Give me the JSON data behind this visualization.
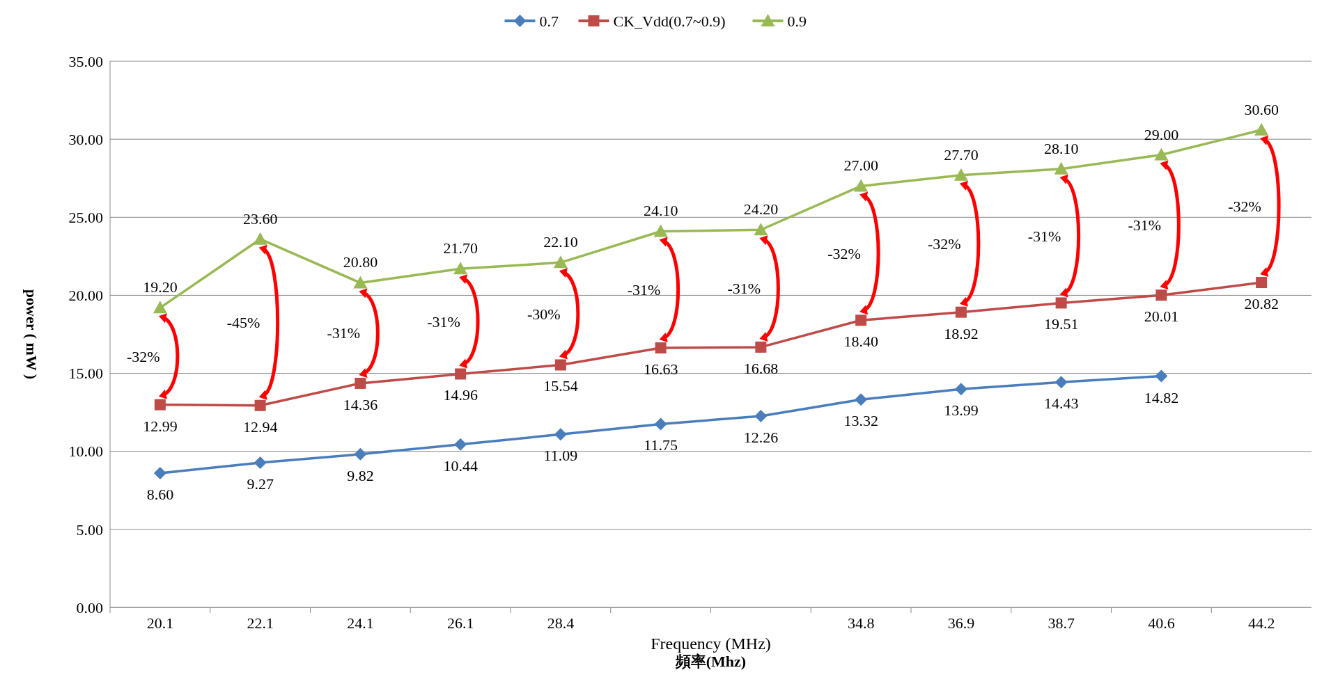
{
  "chart_data": {
    "type": "line",
    "xlabel": "頻率(Mhz)",
    "ylabel": "power ( mW )",
    "categories": [
      "20.1",
      "22.1",
      "24.1",
      "26.1",
      "28.4",
      null,
      null,
      "34.8",
      "36.9",
      "38.7",
      "40.6",
      "44.2"
    ],
    "series": [
      {
        "name": "0.7",
        "color": "#4a7ebb",
        "marker": "diamond",
        "values": [
          8.6,
          9.27,
          9.82,
          10.44,
          11.09,
          11.75,
          12.26,
          13.32,
          13.99,
          14.43,
          14.82,
          null
        ],
        "value_labels": [
          "8.60",
          "9.27",
          "9.82",
          "10.44",
          "11.09",
          "11.75",
          "12.26",
          "13.32",
          "13.99",
          "14.43",
          "14.82",
          null
        ]
      },
      {
        "name": "CK_Vdd(0.7~0.9)",
        "color": "#be4b48",
        "marker": "square",
        "values": [
          12.99,
          12.94,
          14.36,
          14.96,
          15.54,
          16.63,
          16.68,
          18.4,
          18.92,
          19.51,
          20.01,
          20.82
        ],
        "value_labels": [
          "12.99",
          "12.94",
          "14.36",
          "14.96",
          "15.54",
          "16.63",
          "16.68",
          "18.40",
          "18.92",
          "19.51",
          "20.01",
          "20.82"
        ]
      },
      {
        "name": "0.9",
        "color": "#98b954",
        "marker": "triangle",
        "values": [
          19.2,
          23.6,
          20.8,
          21.7,
          22.1,
          24.1,
          24.2,
          27.0,
          27.7,
          28.1,
          29.0,
          30.6
        ],
        "value_labels": [
          "19.20",
          "23.60",
          "20.80",
          "21.70",
          "22.10",
          "24.10",
          "24.20",
          "27.00",
          "27.70",
          "28.10",
          "29.00",
          "30.60"
        ]
      }
    ],
    "ylim": [
      0,
      35
    ],
    "yticks": [
      {
        "value": 0,
        "label": "0.00"
      },
      {
        "value": 5,
        "label": "5.00"
      },
      {
        "value": 10,
        "label": "10.00"
      },
      {
        "value": 15,
        "label": "15.00"
      },
      {
        "value": 20,
        "label": "20.00"
      },
      {
        "value": 25,
        "label": "25.00"
      },
      {
        "value": 30,
        "label": "30.00"
      },
      {
        "value": 35,
        "label": "35.00"
      }
    ],
    "grid": "y",
    "legend": "top",
    "annotations": [
      "Frequency (MHz)",
      "-32%",
      "-45%",
      "-31%",
      "-31%",
      "-30%",
      "-31%",
      "-31%",
      "-32%",
      "-32%",
      "-31%",
      "-31%",
      "-32%"
    ]
  }
}
